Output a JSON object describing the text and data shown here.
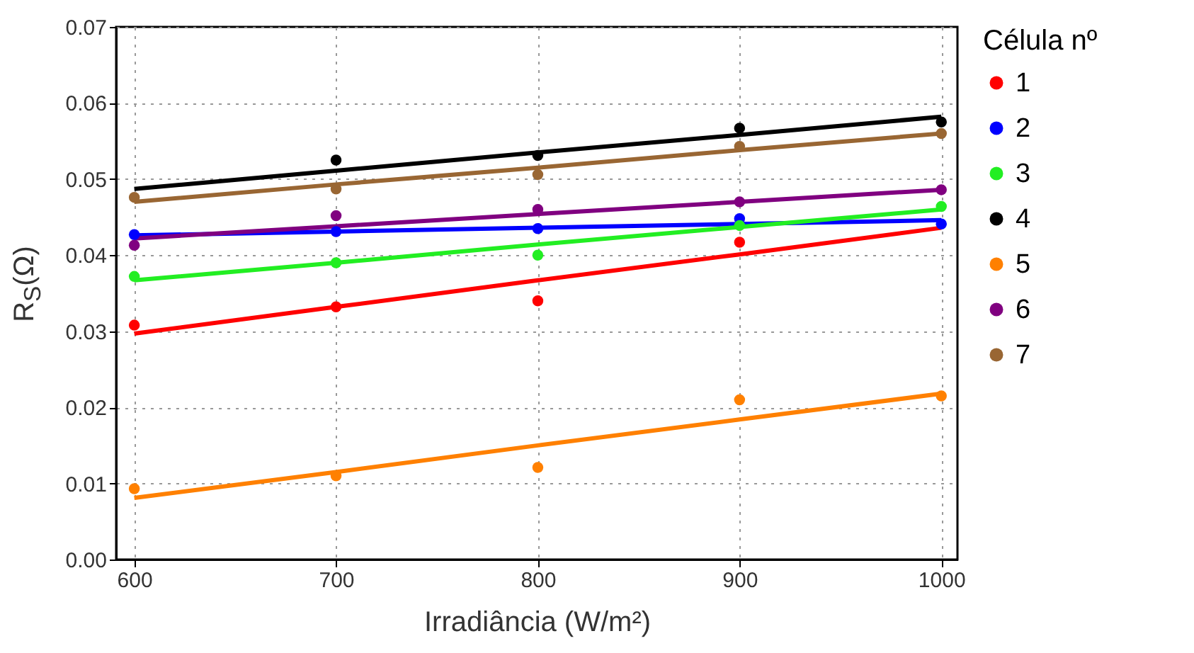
{
  "chart_data": {
    "type": "scatter",
    "xlabel": "Irradiância (W/m²)",
    "ylabel": "R$_{S}$(Ω)",
    "legend_title": "Célula nº",
    "x": [
      600,
      700,
      800,
      900,
      1000
    ],
    "series": [
      {
        "name": "1",
        "color": "#ff0000",
        "values": [
          0.0308,
          0.0332,
          0.034,
          0.0417,
          null
        ]
      },
      {
        "name": "2",
        "color": "#0000ff",
        "values": [
          0.0427,
          0.0431,
          0.0435,
          0.0448,
          0.0441
        ]
      },
      {
        "name": "3",
        "color": "#22ee22",
        "values": [
          0.0372,
          0.039,
          0.04,
          0.0439,
          0.0464
        ]
      },
      {
        "name": "4",
        "color": "#000000",
        "values": [
          null,
          0.0525,
          0.0531,
          0.0567,
          0.0575
        ]
      },
      {
        "name": "5",
        "color": "#ff8000",
        "values": [
          0.0093,
          0.011,
          0.0121,
          0.021,
          0.0215
        ]
      },
      {
        "name": "6",
        "color": "#800080",
        "values": [
          0.0413,
          0.0452,
          0.046,
          0.047,
          0.0486
        ]
      },
      {
        "name": "7",
        "color": "#996633",
        "values": [
          0.0476,
          0.0487,
          0.0506,
          0.0543,
          0.056
        ]
      },
      {
        "type": "line",
        "marker": "none",
        "color": "#ff0000",
        "values": [
          0.0297,
          0.0332,
          0.0367,
          0.0401,
          0.0436
        ]
      },
      {
        "type": "line",
        "marker": "none",
        "color": "#0000ff",
        "values": [
          0.0426,
          0.0431,
          0.0436,
          0.0441,
          0.0446
        ]
      },
      {
        "type": "line",
        "marker": "none",
        "color": "#22ee22",
        "values": [
          0.0367,
          0.039,
          0.0414,
          0.0437,
          0.046
        ]
      },
      {
        "type": "line",
        "marker": "none",
        "color": "#000000",
        "values": [
          0.0487,
          0.0511,
          0.0535,
          0.0558,
          0.0582
        ]
      },
      {
        "type": "line",
        "marker": "none",
        "color": "#ff8000",
        "values": [
          0.0081,
          0.0115,
          0.015,
          0.0184,
          0.0218
        ]
      },
      {
        "type": "line",
        "marker": "none",
        "color": "#800080",
        "values": [
          0.0422,
          0.0438,
          0.0454,
          0.047,
          0.0486
        ]
      },
      {
        "type": "line",
        "marker": "none",
        "color": "#996633",
        "values": [
          0.047,
          0.0493,
          0.0515,
          0.0538,
          0.056
        ]
      }
    ],
    "xlim": [
      591,
      1008
    ],
    "xticks": [
      600,
      700,
      800,
      900,
      {
        "value": 1000,
        "label": "1000"
      }
    ],
    "ylim": [
      0,
      0.07
    ],
    "yticks": [
      {
        "value": 0,
        "label": "0.00"
      },
      0.01,
      0.02,
      0.03,
      0.04,
      0.05,
      0.06,
      0.07
    ],
    "grid": true,
    "legend": "right",
    "marker": "circle",
    "line_style": "solid"
  }
}
